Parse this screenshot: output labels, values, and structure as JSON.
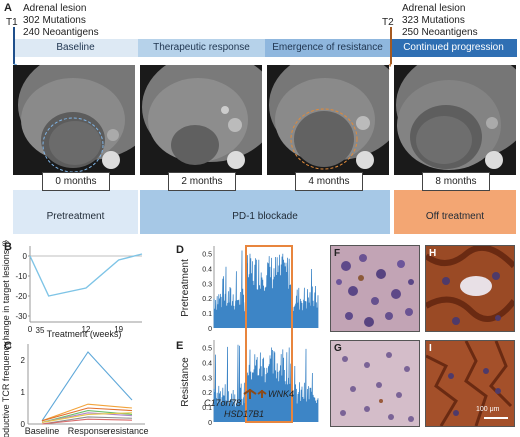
{
  "panel_a": {
    "label": "A",
    "t1": {
      "marker": "T1",
      "lines": [
        "Adrenal lesion",
        "302 Mutations",
        "240 Neoantigens"
      ]
    },
    "t2": {
      "marker": "T2",
      "lines": [
        "Adrenal lesion",
        "323 Mutations",
        "250 Neoantigens"
      ]
    },
    "phases": [
      "Baseline",
      "Therapeutic response",
      "Emergence of resistance",
      "Continued progression"
    ],
    "months": [
      "0 months",
      "2 months",
      "4 months",
      "8 months"
    ],
    "treatment": [
      "Pretreatment",
      "PD-1 blockade",
      "Off treatment"
    ],
    "colors": {
      "phase1": "#dde9f4",
      "phase2": "#b6d2ea",
      "phase3": "#8fb7de",
      "phase4": "#2f6fb3",
      "pretreat": "#dce9f6",
      "pd1": "#a6c8e6",
      "off": "#f3a673",
      "t1_line": "#1f4f8b",
      "t2_line": "#a55a22"
    }
  },
  "panel_b": {
    "label": "B",
    "chart_data": {
      "type": "line",
      "ylabel": "Change in target lesions (%)",
      "xlabel": "Treatment (weeks)",
      "x": [
        0,
        4,
        12,
        19,
        24
      ],
      "values": [
        0,
        -20,
        -16,
        -2,
        1
      ],
      "x_ticks": [
        "0",
        "12",
        "19"
      ],
      "y_ticks": [
        "0",
        "-10",
        "-20",
        "-30"
      ],
      "extra_label": "35",
      "ylim": [
        -33,
        5
      ],
      "color": "#7ec4e6"
    }
  },
  "panel_c": {
    "label": "C",
    "chart_data": {
      "type": "line",
      "ylabel": "Productive TCR frequency (%)",
      "categories": [
        "Baseline",
        "Response",
        "resistance"
      ],
      "y_ticks": [
        "0",
        "1",
        "2"
      ],
      "ylim": [
        0,
        2.5
      ],
      "series": [
        {
          "values": [
            0.1,
            2.25,
            0.75
          ],
          "color": "#5fa8d9"
        },
        {
          "values": [
            0.1,
            0.62,
            0.5
          ],
          "color": "#f2a33a"
        },
        {
          "values": [
            0.1,
            0.5,
            0.42
          ],
          "color": "#e07030"
        },
        {
          "values": [
            0.05,
            0.42,
            0.3
          ],
          "color": "#6abf69"
        },
        {
          "values": [
            0.05,
            0.35,
            0.26
          ],
          "color": "#b085c9"
        },
        {
          "values": [
            0.05,
            0.3,
            0.35
          ],
          "color": "#e6c84d"
        },
        {
          "values": [
            0.0,
            0.22,
            0.18
          ],
          "color": "#8e8e8e"
        },
        {
          "values": [
            0.0,
            0.15,
            0.12
          ],
          "color": "#d96b6b"
        }
      ]
    }
  },
  "panel_d": {
    "label": "D",
    "ylabel": "Pretreatment",
    "y_ticks": [
      "0.5",
      "0.4",
      "0.3",
      "0.2",
      "0.1",
      "0"
    ],
    "color": "#3d85c6",
    "box_color": "#e8853d"
  },
  "panel_e": {
    "label": "E",
    "ylabel": "Resistance",
    "y_ticks": [
      "0.5",
      "0.4",
      "0.3",
      "0.2",
      "0.1",
      "0"
    ],
    "genes": [
      "WNK4",
      "C17orf78",
      "HSD17B1"
    ]
  },
  "panel_f": {
    "label": "F"
  },
  "panel_g": {
    "label": "G"
  },
  "panel_h": {
    "label": "H"
  },
  "panel_i": {
    "label": "I",
    "scale": "100 μm"
  }
}
